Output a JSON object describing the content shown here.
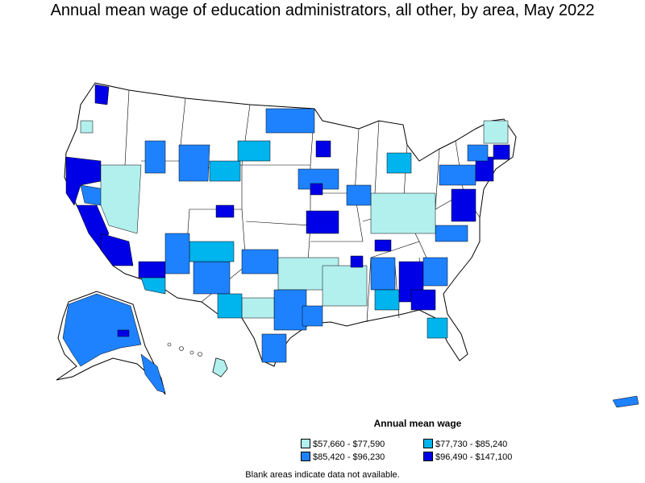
{
  "title": "Annual mean wage of education administrators, all other, by area, May 2022",
  "legend": {
    "title": "Annual mean wage",
    "items": [
      {
        "label": "$57,660 - $77,590",
        "color": "#b2f0ee"
      },
      {
        "label": "$77,730 - $85,240",
        "color": "#00b4ee"
      },
      {
        "label": "$85,420 - $96,230",
        "color": "#1e82ff"
      },
      {
        "label": "$96,490 - $147,100",
        "color": "#0000e6"
      }
    ]
  },
  "note": "Blank areas indicate data not available."
}
